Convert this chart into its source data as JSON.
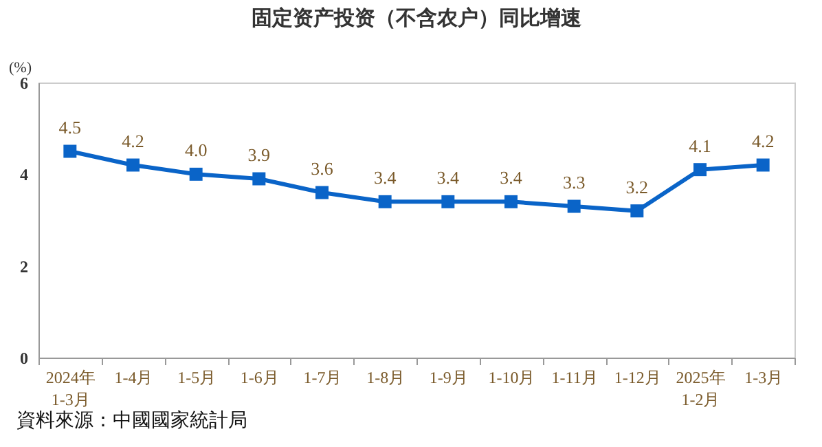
{
  "chart_data": {
    "type": "line",
    "title": "固定资产投资（不含农户）同比增速",
    "ylabel": "(%)",
    "categories": [
      "2024年\n1-3月",
      "1-4月",
      "1-5月",
      "1-6月",
      "1-7月",
      "1-8月",
      "1-9月",
      "1-10月",
      "1-11月",
      "1-12月",
      "2025年\n1-2月",
      "1-3月"
    ],
    "series": [
      {
        "color": "#0a64c8",
        "values": [
          4.5,
          4.2,
          4.0,
          3.9,
          3.6,
          3.4,
          3.4,
          3.4,
          3.3,
          3.2,
          4.1,
          4.2
        ]
      }
    ],
    "value_labels": [
      "4.5",
      "4.2",
      "4.0",
      "3.9",
      "3.6",
      "3.4",
      "3.4",
      "3.4",
      "3.3",
      "3.2",
      "4.1",
      "4.2"
    ],
    "ylim": [
      0,
      6
    ],
    "yticks": [
      0,
      2,
      4,
      6
    ],
    "marker": "square",
    "line_style": "solid",
    "grid": false,
    "annotations": [
      "資料來源：中國國家統計局"
    ]
  }
}
